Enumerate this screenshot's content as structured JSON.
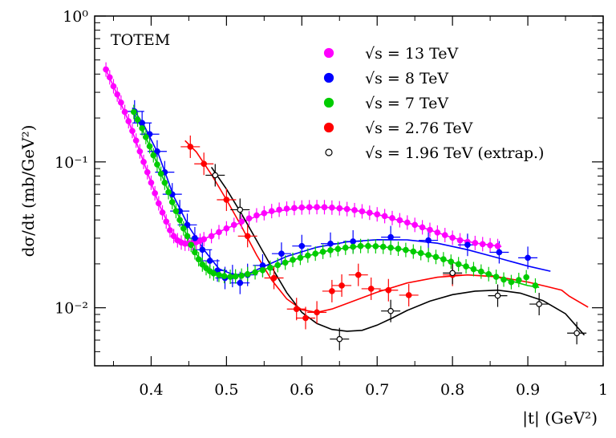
{
  "chart_data": {
    "type": "scatter",
    "title": "",
    "annotation": "TOTEM",
    "xlabel": "|t|   (GeV²)",
    "ylabel": "dσ/dt   (mb/GeV²)",
    "xlim": [
      0.325,
      1.0
    ],
    "ylim": [
      0.004,
      1.0
    ],
    "yscale": "log",
    "x_ticks": [
      0.4,
      0.5,
      0.6,
      0.7,
      0.8,
      0.9,
      1.0
    ],
    "x_tick_labels": [
      "0.4",
      "0.5",
      "0.6",
      "0.7",
      "0.8",
      "0.9",
      "1"
    ],
    "y_ticks": [
      0.01,
      0.1,
      1.0
    ],
    "y_tick_labels": [
      "10⁻²",
      "10⁻¹",
      "10⁰"
    ],
    "grid": false,
    "legend_position": "top-right",
    "series": [
      {
        "name": "√s = 13 TeV",
        "color": "#ff00ff",
        "marker": "filled-circle",
        "points": [
          [
            0.34,
            0.43
          ],
          [
            0.345,
            0.38
          ],
          [
            0.35,
            0.33
          ],
          [
            0.355,
            0.29
          ],
          [
            0.36,
            0.255
          ],
          [
            0.365,
            0.22
          ],
          [
            0.37,
            0.19
          ],
          [
            0.375,
            0.163
          ],
          [
            0.38,
            0.14
          ],
          [
            0.385,
            0.118
          ],
          [
            0.39,
            0.1
          ],
          [
            0.395,
            0.085
          ],
          [
            0.4,
            0.072
          ],
          [
            0.405,
            0.061
          ],
          [
            0.41,
            0.052
          ],
          [
            0.415,
            0.045
          ],
          [
            0.42,
            0.039
          ],
          [
            0.425,
            0.034
          ],
          [
            0.43,
            0.031
          ],
          [
            0.435,
            0.029
          ],
          [
            0.44,
            0.028
          ],
          [
            0.445,
            0.0275
          ],
          [
            0.45,
            0.0275
          ],
          [
            0.455,
            0.0278
          ],
          [
            0.46,
            0.0282
          ],
          [
            0.465,
            0.0288
          ],
          [
            0.47,
            0.0295
          ],
          [
            0.48,
            0.031
          ],
          [
            0.49,
            0.033
          ],
          [
            0.5,
            0.035
          ],
          [
            0.51,
            0.037
          ],
          [
            0.52,
            0.039
          ],
          [
            0.53,
            0.041
          ],
          [
            0.54,
            0.043
          ],
          [
            0.55,
            0.0445
          ],
          [
            0.56,
            0.046
          ],
          [
            0.57,
            0.047
          ],
          [
            0.58,
            0.0478
          ],
          [
            0.59,
            0.0483
          ],
          [
            0.6,
            0.0487
          ],
          [
            0.61,
            0.0489
          ],
          [
            0.62,
            0.049
          ],
          [
            0.63,
            0.0489
          ],
          [
            0.64,
            0.0486
          ],
          [
            0.65,
            0.0481
          ],
          [
            0.66,
            0.0475
          ],
          [
            0.67,
            0.0467
          ],
          [
            0.68,
            0.0458
          ],
          [
            0.69,
            0.0448
          ],
          [
            0.7,
            0.0437
          ],
          [
            0.71,
            0.0425
          ],
          [
            0.72,
            0.0412
          ],
          [
            0.73,
            0.0398
          ],
          [
            0.74,
            0.0384
          ],
          [
            0.75,
            0.037
          ],
          [
            0.76,
            0.0356
          ],
          [
            0.77,
            0.0342
          ],
          [
            0.78,
            0.0328
          ],
          [
            0.79,
            0.0315
          ],
          [
            0.8,
            0.0302
          ],
          [
            0.81,
            0.029
          ],
          [
            0.82,
            0.0283
          ],
          [
            0.83,
            0.0278
          ],
          [
            0.84,
            0.0273
          ],
          [
            0.85,
            0.0268
          ],
          [
            0.86,
            0.0265
          ]
        ],
        "fit": [
          [
            0.338,
            0.45
          ],
          [
            0.35,
            0.33
          ],
          [
            0.37,
            0.19
          ],
          [
            0.39,
            0.1
          ],
          [
            0.41,
            0.052
          ],
          [
            0.43,
            0.031
          ],
          [
            0.45,
            0.0275
          ],
          [
            0.47,
            0.0295
          ],
          [
            0.5,
            0.035
          ],
          [
            0.55,
            0.0445
          ],
          [
            0.6,
            0.0487
          ],
          [
            0.63,
            0.0489
          ],
          [
            0.66,
            0.0475
          ],
          [
            0.7,
            0.0437
          ],
          [
            0.75,
            0.037
          ],
          [
            0.8,
            0.0302
          ],
          [
            0.83,
            0.0278
          ],
          [
            0.865,
            0.0263
          ]
        ]
      },
      {
        "name": "√s = 8 TeV",
        "color": "#0000ff",
        "marker": "filled-circle",
        "points": [
          [
            0.378,
            0.222
          ],
          [
            0.388,
            0.185
          ],
          [
            0.398,
            0.155
          ],
          [
            0.408,
            0.118
          ],
          [
            0.418,
            0.085
          ],
          [
            0.428,
            0.06
          ],
          [
            0.438,
            0.046
          ],
          [
            0.448,
            0.037
          ],
          [
            0.458,
            0.03
          ],
          [
            0.468,
            0.025
          ],
          [
            0.478,
            0.021
          ],
          [
            0.488,
            0.018
          ],
          [
            0.498,
            0.016
          ],
          [
            0.508,
            0.0165
          ],
          [
            0.518,
            0.0148
          ],
          [
            0.528,
            0.0168
          ],
          [
            0.548,
            0.0195
          ],
          [
            0.573,
            0.0235
          ],
          [
            0.6,
            0.0265
          ],
          [
            0.638,
            0.0275
          ],
          [
            0.668,
            0.0285
          ],
          [
            0.718,
            0.0305
          ],
          [
            0.768,
            0.029
          ],
          [
            0.82,
            0.027
          ],
          [
            0.862,
            0.024
          ],
          [
            0.9,
            0.022
          ]
        ],
        "fit": [
          [
            0.375,
            0.235
          ],
          [
            0.39,
            0.18
          ],
          [
            0.41,
            0.112
          ],
          [
            0.43,
            0.058
          ],
          [
            0.45,
            0.036
          ],
          [
            0.47,
            0.025
          ],
          [
            0.49,
            0.0185
          ],
          [
            0.51,
            0.0168
          ],
          [
            0.53,
            0.0172
          ],
          [
            0.55,
            0.0192
          ],
          [
            0.58,
            0.0225
          ],
          [
            0.62,
            0.026
          ],
          [
            0.66,
            0.0283
          ],
          [
            0.7,
            0.0293
          ],
          [
            0.74,
            0.0292
          ],
          [
            0.78,
            0.0277
          ],
          [
            0.82,
            0.025
          ],
          [
            0.86,
            0.022
          ],
          [
            0.9,
            0.0193
          ],
          [
            0.93,
            0.0178
          ]
        ]
      },
      {
        "name": "√s = 7 TeV",
        "color": "#00cc00",
        "marker": "filled-circle",
        "points": [
          [
            0.377,
            0.22
          ],
          [
            0.382,
            0.195
          ],
          [
            0.388,
            0.17
          ],
          [
            0.393,
            0.148
          ],
          [
            0.398,
            0.128
          ],
          [
            0.403,
            0.111
          ],
          [
            0.408,
            0.096
          ],
          [
            0.413,
            0.083
          ],
          [
            0.418,
            0.072
          ],
          [
            0.423,
            0.062
          ],
          [
            0.428,
            0.053
          ],
          [
            0.433,
            0.046
          ],
          [
            0.438,
            0.04
          ],
          [
            0.443,
            0.035
          ],
          [
            0.448,
            0.031
          ],
          [
            0.453,
            0.027
          ],
          [
            0.458,
            0.024
          ],
          [
            0.463,
            0.0215
          ],
          [
            0.468,
            0.0198
          ],
          [
            0.473,
            0.0187
          ],
          [
            0.478,
            0.0178
          ],
          [
            0.483,
            0.0172
          ],
          [
            0.49,
            0.0168
          ],
          [
            0.497,
            0.0165
          ],
          [
            0.505,
            0.0163
          ],
          [
            0.512,
            0.0164
          ],
          [
            0.52,
            0.0166
          ],
          [
            0.528,
            0.017
          ],
          [
            0.538,
            0.0175
          ],
          [
            0.548,
            0.0181
          ],
          [
            0.558,
            0.0188
          ],
          [
            0.568,
            0.0196
          ],
          [
            0.578,
            0.0204
          ],
          [
            0.588,
            0.0213
          ],
          [
            0.598,
            0.022
          ],
          [
            0.608,
            0.0228
          ],
          [
            0.618,
            0.0235
          ],
          [
            0.628,
            0.0242
          ],
          [
            0.638,
            0.0248
          ],
          [
            0.648,
            0.0253
          ],
          [
            0.658,
            0.0258
          ],
          [
            0.668,
            0.0262
          ],
          [
            0.678,
            0.0265
          ],
          [
            0.688,
            0.0265
          ],
          [
            0.698,
            0.0264
          ],
          [
            0.708,
            0.0262
          ],
          [
            0.718,
            0.0258
          ],
          [
            0.728,
            0.0254
          ],
          [
            0.738,
            0.0249
          ],
          [
            0.748,
            0.0243
          ],
          [
            0.758,
            0.0237
          ],
          [
            0.768,
            0.023
          ],
          [
            0.778,
            0.0223
          ],
          [
            0.788,
            0.0215
          ],
          [
            0.798,
            0.0207
          ],
          [
            0.808,
            0.0199
          ],
          [
            0.818,
            0.0192
          ],
          [
            0.828,
            0.0184
          ],
          [
            0.838,
            0.0177
          ],
          [
            0.848,
            0.017
          ],
          [
            0.858,
            0.0163
          ],
          [
            0.868,
            0.0156
          ],
          [
            0.878,
            0.015
          ],
          [
            0.888,
            0.0155
          ],
          [
            0.898,
            0.0162
          ],
          [
            0.91,
            0.0142
          ]
        ],
        "fit": [
          [
            0.375,
            0.23
          ],
          [
            0.39,
            0.16
          ],
          [
            0.41,
            0.092
          ],
          [
            0.43,
            0.051
          ],
          [
            0.45,
            0.029
          ],
          [
            0.47,
            0.019
          ],
          [
            0.49,
            0.0167
          ],
          [
            0.51,
            0.0163
          ],
          [
            0.53,
            0.017
          ],
          [
            0.56,
            0.019
          ],
          [
            0.6,
            0.0222
          ],
          [
            0.64,
            0.025
          ],
          [
            0.68,
            0.0265
          ],
          [
            0.7,
            0.0265
          ],
          [
            0.74,
            0.0249
          ],
          [
            0.78,
            0.0222
          ],
          [
            0.82,
            0.019
          ],
          [
            0.86,
            0.0162
          ],
          [
            0.9,
            0.0142
          ],
          [
            0.915,
            0.0138
          ]
        ]
      },
      {
        "name": "√s = 2.76 TeV",
        "color": "#ff0000",
        "marker": "filled-circle",
        "points": [
          [
            0.452,
            0.127
          ],
          [
            0.47,
            0.097
          ],
          [
            0.5,
            0.055
          ],
          [
            0.528,
            0.031
          ],
          [
            0.563,
            0.016
          ],
          [
            0.593,
            0.0098
          ],
          [
            0.605,
            0.0085
          ],
          [
            0.62,
            0.0093
          ],
          [
            0.64,
            0.013
          ],
          [
            0.653,
            0.0142
          ],
          [
            0.675,
            0.0168
          ],
          [
            0.692,
            0.0135
          ],
          [
            0.715,
            0.0132
          ],
          [
            0.742,
            0.0122
          ],
          [
            0.8,
            0.0168
          ]
        ],
        "fit": [
          [
            0.445,
            0.14
          ],
          [
            0.46,
            0.117
          ],
          [
            0.48,
            0.082
          ],
          [
            0.5,
            0.055
          ],
          [
            0.52,
            0.036
          ],
          [
            0.54,
            0.023
          ],
          [
            0.56,
            0.0155
          ],
          [
            0.58,
            0.0115
          ],
          [
            0.6,
            0.0097
          ],
          [
            0.62,
            0.0093
          ],
          [
            0.64,
            0.0098
          ],
          [
            0.66,
            0.0107
          ],
          [
            0.7,
            0.0128
          ],
          [
            0.74,
            0.0148
          ],
          [
            0.78,
            0.0162
          ],
          [
            0.82,
            0.0168
          ],
          [
            0.86,
            0.0163
          ],
          [
            0.9,
            0.015
          ],
          [
            0.925,
            0.014
          ],
          [
            0.945,
            0.0132
          ],
          [
            0.955,
            0.012
          ],
          [
            0.98,
            0.0101
          ]
        ]
      },
      {
        "name": "√s = 1.96 TeV (extrap.)",
        "color": "#000000",
        "marker": "open-circle",
        "points": [
          [
            0.485,
            0.081
          ],
          [
            0.518,
            0.047
          ],
          [
            0.65,
            0.0061
          ],
          [
            0.718,
            0.0095
          ],
          [
            0.8,
            0.0173
          ],
          [
            0.86,
            0.0121
          ],
          [
            0.915,
            0.0106
          ],
          [
            0.965,
            0.0067
          ]
        ],
        "fit": [
          [
            0.48,
            0.092
          ],
          [
            0.5,
            0.065
          ],
          [
            0.52,
            0.044
          ],
          [
            0.54,
            0.029
          ],
          [
            0.56,
            0.019
          ],
          [
            0.58,
            0.0127
          ],
          [
            0.6,
            0.0093
          ],
          [
            0.62,
            0.0078
          ],
          [
            0.64,
            0.0071
          ],
          [
            0.66,
            0.0069
          ],
          [
            0.68,
            0.007
          ],
          [
            0.7,
            0.0076
          ],
          [
            0.72,
            0.0085
          ],
          [
            0.74,
            0.0096
          ],
          [
            0.77,
            0.0111
          ],
          [
            0.8,
            0.0123
          ],
          [
            0.83,
            0.013
          ],
          [
            0.86,
            0.0132
          ],
          [
            0.89,
            0.0126
          ],
          [
            0.92,
            0.0112
          ],
          [
            0.95,
            0.0091
          ],
          [
            0.975,
            0.0065
          ]
        ]
      }
    ]
  }
}
